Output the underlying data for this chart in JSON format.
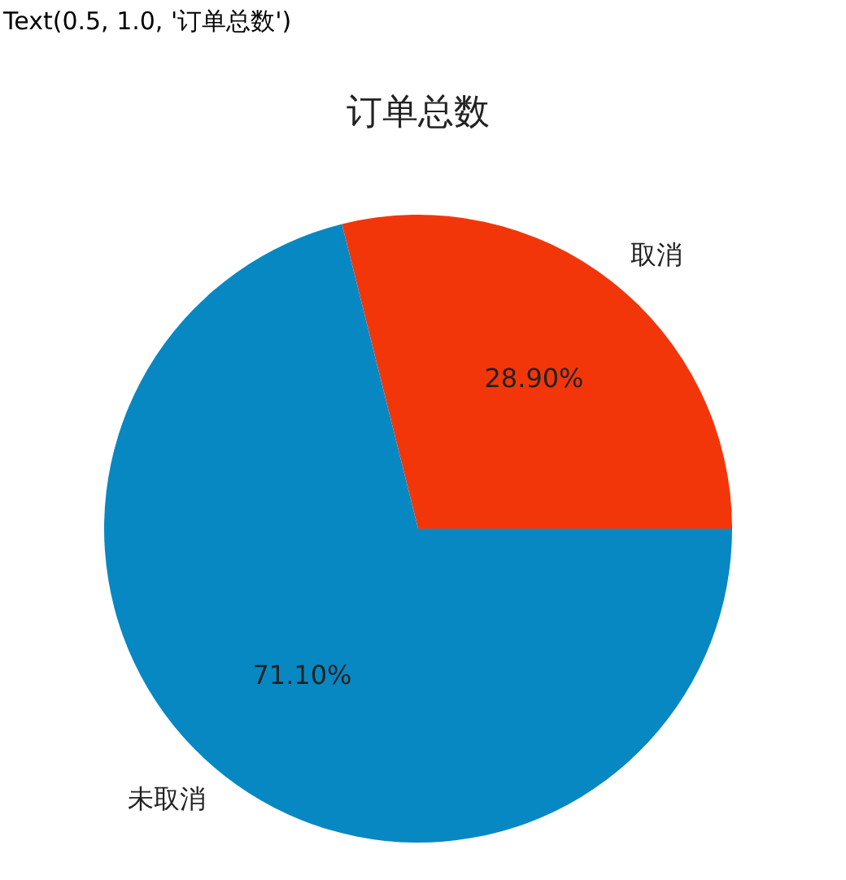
{
  "chart_data": {
    "type": "pie",
    "title": "订单总数",
    "categories": [
      "取消",
      "未取消"
    ],
    "values": [
      28.9,
      71.1
    ],
    "colors": [
      "#f3360a",
      "#0788c2"
    ],
    "value_labels": [
      "28.90%",
      "71.10%"
    ],
    "annotations": [
      "Text(0.5, 1.0, '订单总数')"
    ]
  }
}
